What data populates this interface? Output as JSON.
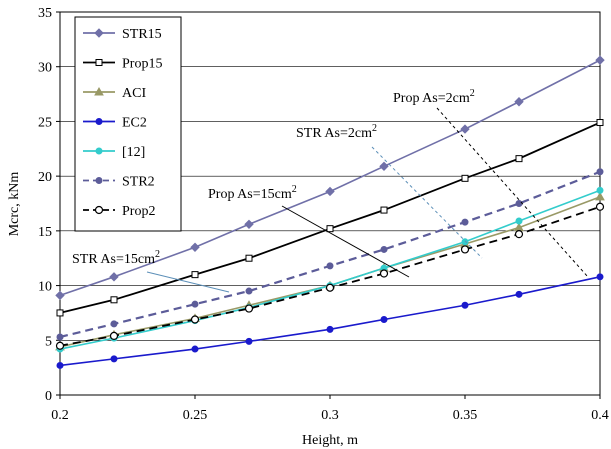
{
  "chart_data": {
    "type": "line",
    "xlabel": "Height, m",
    "ylabel": "Mcrc, kNm",
    "xlim": [
      0.2,
      0.4
    ],
    "ylim": [
      0,
      35
    ],
    "xticks": [
      "0.2",
      "0.25",
      "0.3",
      "0.35",
      "0.4"
    ],
    "yticks": [
      "0",
      "5",
      "10",
      "15",
      "20",
      "25",
      "30",
      "35"
    ],
    "grid": "horizontal",
    "legend_position": "top-left",
    "series": [
      {
        "name": "STR15",
        "color": "#7070a8",
        "dash": "solid",
        "marker": "diamond",
        "points": [
          [
            0.2,
            9.1
          ],
          [
            0.22,
            10.8
          ],
          [
            0.25,
            13.5
          ],
          [
            0.27,
            15.6
          ],
          [
            0.3,
            18.6
          ],
          [
            0.32,
            20.9
          ],
          [
            0.35,
            24.3
          ],
          [
            0.37,
            26.8
          ],
          [
            0.4,
            30.6
          ]
        ]
      },
      {
        "name": "Prop15",
        "color": "#000000",
        "dash": "solid",
        "marker": "square-open",
        "points": [
          [
            0.2,
            7.5
          ],
          [
            0.22,
            8.7
          ],
          [
            0.25,
            11.0
          ],
          [
            0.27,
            12.5
          ],
          [
            0.3,
            15.2
          ],
          [
            0.32,
            16.9
          ],
          [
            0.35,
            19.8
          ],
          [
            0.37,
            21.6
          ],
          [
            0.4,
            24.9
          ]
        ]
      },
      {
        "name": "ACI",
        "color": "#999966",
        "dash": "solid",
        "marker": "triangle",
        "points": [
          [
            0.2,
            4.4
          ],
          [
            0.22,
            5.5
          ],
          [
            0.25,
            7.0
          ],
          [
            0.27,
            8.2
          ],
          [
            0.3,
            10.0
          ],
          [
            0.32,
            11.6
          ],
          [
            0.35,
            13.8
          ],
          [
            0.37,
            15.3
          ],
          [
            0.4,
            18.1
          ]
        ]
      },
      {
        "name": "EC2",
        "color": "#1a1acc",
        "dash": "solid",
        "marker": "circle",
        "points": [
          [
            0.2,
            2.7
          ],
          [
            0.22,
            3.3
          ],
          [
            0.25,
            4.2
          ],
          [
            0.27,
            4.9
          ],
          [
            0.3,
            6.0
          ],
          [
            0.32,
            6.9
          ],
          [
            0.35,
            8.2
          ],
          [
            0.37,
            9.2
          ],
          [
            0.4,
            10.8
          ]
        ]
      },
      {
        "name": "[12]",
        "color": "#33cccc",
        "dash": "solid",
        "marker": "circle",
        "points": [
          [
            0.2,
            4.2
          ],
          [
            0.22,
            5.2
          ],
          [
            0.25,
            6.8
          ],
          [
            0.27,
            8.0
          ],
          [
            0.3,
            10.0
          ],
          [
            0.32,
            11.6
          ],
          [
            0.35,
            14.0
          ],
          [
            0.37,
            15.9
          ],
          [
            0.4,
            18.7
          ]
        ]
      },
      {
        "name": "STR2",
        "color": "#5c5c99",
        "dash": "dashed",
        "marker": "circle",
        "points": [
          [
            0.2,
            5.3
          ],
          [
            0.22,
            6.5
          ],
          [
            0.25,
            8.3
          ],
          [
            0.27,
            9.5
          ],
          [
            0.3,
            11.8
          ],
          [
            0.32,
            13.3
          ],
          [
            0.35,
            15.8
          ],
          [
            0.37,
            17.5
          ],
          [
            0.4,
            20.4
          ]
        ]
      },
      {
        "name": "Prop2",
        "color": "#000000",
        "dash": "dashed",
        "marker": "circle-open",
        "points": [
          [
            0.2,
            4.5
          ],
          [
            0.22,
            5.4
          ],
          [
            0.25,
            6.9
          ],
          [
            0.27,
            7.9
          ],
          [
            0.3,
            9.8
          ],
          [
            0.32,
            11.1
          ],
          [
            0.35,
            13.3
          ],
          [
            0.37,
            14.7
          ],
          [
            0.4,
            17.2
          ]
        ]
      }
    ],
    "annotations": [
      {
        "label": "STR As=15cm",
        "sup": "2"
      },
      {
        "label": "Prop As=15cm",
        "sup": "2"
      },
      {
        "label": "STR As=2cm",
        "sup": "2"
      },
      {
        "label": "Prop As=2cm",
        "sup": "2"
      }
    ]
  }
}
